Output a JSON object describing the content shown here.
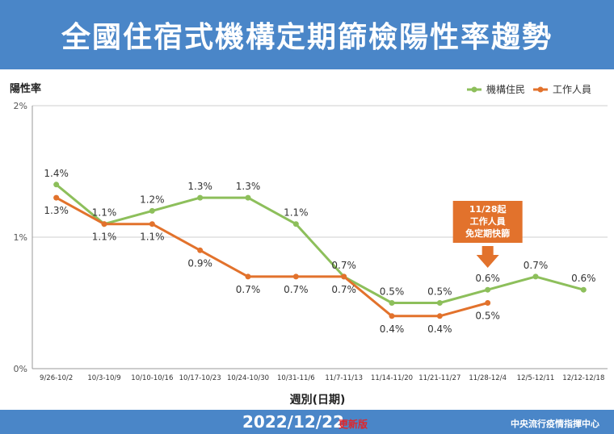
{
  "header": {
    "title": "全國住宿式機構定期篩檢陽性率趨勢"
  },
  "footer": {
    "date": "2022/12/22",
    "update_label": "更新版",
    "source": "中央流行疫情指揮中心"
  },
  "colors": {
    "resident": "#8dbf5b",
    "staff": "#e2722c",
    "brand": "#4a86c8",
    "note": "#e2722c"
  },
  "annotation": {
    "lines": [
      "11/28起",
      "工作人員",
      "免定期快篩"
    ],
    "category": "11/28-12/4"
  },
  "chart_data": {
    "type": "line",
    "title": "全國住宿式機構定期篩檢陽性率趨勢",
    "ylabel": "陽性率",
    "xlabel": "週別(日期)",
    "ylim": [
      0,
      2
    ],
    "yticks": [
      0,
      1,
      2
    ],
    "ytick_labels": [
      "0%",
      "1%",
      "2%"
    ],
    "categories": [
      "9/26-10/2",
      "10/3-10/9",
      "10/10-10/16",
      "10/17-10/23",
      "10/24-10/30",
      "10/31-11/6",
      "11/7-11/13",
      "11/14-11/20",
      "11/21-11/27",
      "11/28-12/4",
      "12/5-12/11",
      "12/12-12/18"
    ],
    "legend_position": "top-right",
    "series": [
      {
        "name": "機構住民",
        "values": [
          1.4,
          1.1,
          1.2,
          1.3,
          1.3,
          1.1,
          0.7,
          0.5,
          0.5,
          0.6,
          0.7,
          0.6
        ],
        "labels": [
          "1.4%",
          "1.1%",
          "1.2%",
          "1.3%",
          "1.3%",
          "1.1%",
          "0.7%",
          "0.5%",
          "0.5%",
          "0.6%",
          "0.7%",
          "0.6%"
        ]
      },
      {
        "name": "工作人員",
        "values": [
          1.3,
          1.1,
          1.1,
          0.9,
          0.7,
          0.7,
          0.7,
          0.4,
          0.4,
          0.5,
          null,
          null
        ],
        "labels": [
          "1.3%",
          "1.1%",
          "1.1%",
          "0.9%",
          "0.7%",
          "0.7%",
          "0.7%",
          "0.4%",
          "0.4%",
          "0.5%",
          null,
          null
        ]
      }
    ]
  }
}
